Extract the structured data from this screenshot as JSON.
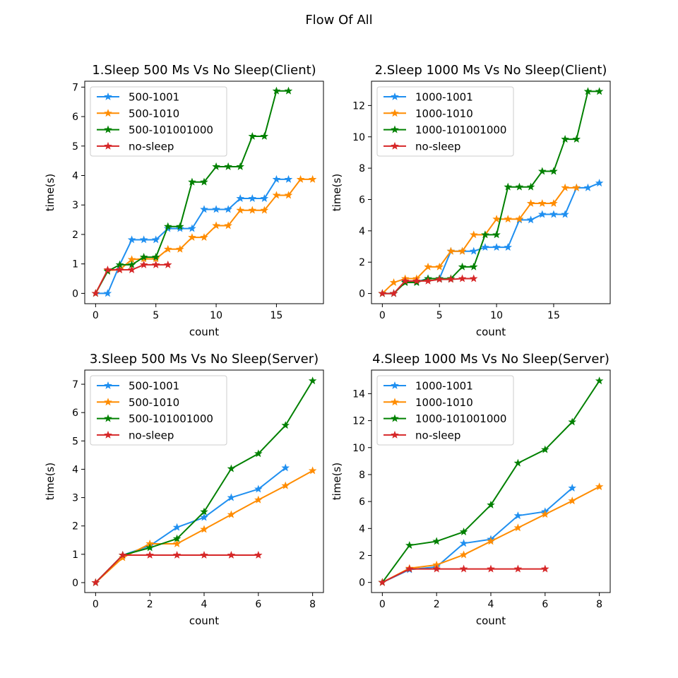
{
  "figure": {
    "title": "Flow Of All"
  },
  "chart_data": [
    {
      "type": "line",
      "title": "1.Sleep 500 Ms Vs No Sleep(Client)",
      "xlabel": "count",
      "ylabel": "time(s)",
      "xlim": [
        -0.9,
        18.9
      ],
      "ylim": [
        -0.35,
        7.2
      ],
      "xticks": [
        0,
        5,
        10,
        15
      ],
      "yticks": [
        0,
        1,
        2,
        3,
        4,
        5,
        6,
        7
      ],
      "legend": "upper-left",
      "series": [
        {
          "name": "500-1001",
          "color": "#1f8ff0",
          "x": [
            0,
            1,
            2,
            3,
            4,
            5,
            6,
            7,
            8,
            9,
            10,
            11,
            12,
            13,
            14,
            15,
            16
          ],
          "y": [
            0,
            0,
            0.97,
            1.82,
            1.82,
            1.82,
            2.2,
            2.2,
            2.2,
            2.85,
            2.85,
            2.85,
            3.22,
            3.22,
            3.22,
            3.87,
            3.87
          ]
        },
        {
          "name": "500-1010",
          "color": "#ff8c00",
          "x": [
            0,
            1,
            2,
            3,
            4,
            5,
            6,
            7,
            8,
            9,
            10,
            11,
            12,
            13,
            14,
            15,
            16,
            17,
            18
          ],
          "y": [
            0,
            0.78,
            0.8,
            1.15,
            1.17,
            1.17,
            1.5,
            1.5,
            1.9,
            1.9,
            2.3,
            2.3,
            2.82,
            2.82,
            2.82,
            3.33,
            3.33,
            3.87,
            3.87
          ]
        },
        {
          "name": "500-101001000",
          "color": "#008000",
          "x": [
            0,
            1,
            2,
            3,
            4,
            5,
            6,
            7,
            8,
            9,
            10,
            11,
            12,
            13,
            14,
            15,
            16
          ],
          "y": [
            0,
            0.75,
            0.97,
            0.97,
            1.23,
            1.23,
            2.27,
            2.27,
            3.78,
            3.78,
            4.3,
            4.3,
            4.3,
            5.33,
            5.33,
            6.87,
            6.87
          ]
        },
        {
          "name": "no-sleep",
          "color": "#d62728",
          "x": [
            0,
            1,
            2,
            3,
            4,
            5,
            6
          ],
          "y": [
            0,
            0.8,
            0.8,
            0.8,
            0.97,
            0.97,
            0.97
          ]
        }
      ]
    },
    {
      "type": "line",
      "title": "2.Sleep 1000 Ms Vs No Sleep(Client)",
      "xlabel": "count",
      "ylabel": "time(s)",
      "xlim": [
        -0.95,
        19.95
      ],
      "ylim": [
        -0.65,
        13.55
      ],
      "xticks": [
        0,
        5,
        10,
        15
      ],
      "yticks": [
        0,
        2,
        4,
        6,
        8,
        10,
        12
      ],
      "legend": "upper-left",
      "series": [
        {
          "name": "1000-1001",
          "color": "#1f8ff0",
          "x": [
            0,
            1,
            2,
            3,
            4,
            5,
            6,
            7,
            8,
            9,
            10,
            11,
            12,
            13,
            14,
            15,
            16,
            17,
            18,
            19
          ],
          "y": [
            0,
            0,
            0.75,
            0.75,
            0.95,
            0.95,
            2.7,
            2.7,
            2.7,
            2.95,
            2.95,
            2.95,
            4.7,
            4.7,
            5.05,
            5.05,
            5.05,
            6.75,
            6.75,
            7.05
          ]
        },
        {
          "name": "1000-1010",
          "color": "#ff8c00",
          "x": [
            0,
            1,
            2,
            3,
            4,
            5,
            6,
            7,
            8,
            9,
            10,
            11,
            12,
            13,
            14,
            15,
            16,
            17
          ],
          "y": [
            0,
            0.7,
            0.95,
            0.95,
            1.7,
            1.7,
            2.7,
            2.7,
            3.75,
            3.75,
            4.75,
            4.75,
            4.75,
            5.75,
            5.75,
            5.75,
            6.75,
            6.75
          ]
        },
        {
          "name": "1000-101001000",
          "color": "#008000",
          "x": [
            0,
            1,
            2,
            3,
            4,
            5,
            6,
            7,
            8,
            9,
            10,
            11,
            12,
            13,
            14,
            15,
            16,
            17,
            18,
            19
          ],
          "y": [
            0,
            0,
            0.7,
            0.7,
            0.95,
            0.95,
            0.95,
            1.7,
            1.7,
            3.75,
            3.75,
            6.8,
            6.8,
            6.8,
            7.8,
            7.8,
            9.85,
            9.85,
            12.9,
            12.9
          ]
        },
        {
          "name": "no-sleep",
          "color": "#d62728",
          "x": [
            0,
            1,
            2,
            3,
            4,
            5,
            6,
            7,
            8
          ],
          "y": [
            0,
            0,
            0.8,
            0.8,
            0.8,
            0.9,
            0.9,
            0.95,
            0.95
          ]
        }
      ]
    },
    {
      "type": "line",
      "title": "3.Sleep 500 Ms Vs No Sleep(Server)",
      "xlabel": "count",
      "ylabel": "time(s)",
      "xlim": [
        -0.4,
        8.4
      ],
      "ylim": [
        -0.35,
        7.5
      ],
      "xticks": [
        0,
        2,
        4,
        6,
        8
      ],
      "yticks": [
        0,
        1,
        2,
        3,
        4,
        5,
        6,
        7
      ],
      "legend": "upper-left",
      "series": [
        {
          "name": "500-1001",
          "color": "#1f8ff0",
          "x": [
            0,
            1,
            2,
            3,
            4,
            5,
            6,
            7
          ],
          "y": [
            0,
            0.97,
            1.3,
            1.95,
            2.3,
            3.0,
            3.3,
            4.05
          ]
        },
        {
          "name": "500-1010",
          "color": "#ff8c00",
          "x": [
            0,
            1,
            2,
            3,
            4,
            5,
            6,
            7,
            8
          ],
          "y": [
            0,
            0.88,
            1.37,
            1.37,
            1.88,
            2.4,
            2.92,
            3.42,
            3.95
          ]
        },
        {
          "name": "500-101001000",
          "color": "#008000",
          "x": [
            0,
            1,
            2,
            3,
            4,
            5,
            6,
            7,
            8
          ],
          "y": [
            0,
            0.97,
            1.23,
            1.55,
            2.5,
            4.02,
            4.55,
            5.55,
            7.12
          ]
        },
        {
          "name": "no-sleep",
          "color": "#d62728",
          "x": [
            0,
            1,
            2,
            3,
            4,
            5,
            6
          ],
          "y": [
            0,
            0.97,
            0.97,
            0.97,
            0.97,
            0.97,
            0.97
          ]
        }
      ]
    },
    {
      "type": "line",
      "title": "4.Sleep 1000 Ms Vs No Sleep(Server)",
      "xlabel": "count",
      "ylabel": "time(s)",
      "xlim": [
        -0.4,
        8.4
      ],
      "ylim": [
        -0.75,
        15.75
      ],
      "xticks": [
        0,
        2,
        4,
        6,
        8
      ],
      "yticks": [
        0,
        2,
        4,
        6,
        8,
        10,
        12,
        14
      ],
      "legend": "upper-left",
      "series": [
        {
          "name": "1000-1001",
          "color": "#1f8ff0",
          "x": [
            0,
            1,
            2,
            3,
            4,
            5,
            6,
            7
          ],
          "y": [
            0,
            0.95,
            1.15,
            2.9,
            3.2,
            4.95,
            5.25,
            7.0
          ]
        },
        {
          "name": "1000-1010",
          "color": "#ff8c00",
          "x": [
            0,
            1,
            2,
            3,
            4,
            5,
            6,
            7,
            8
          ],
          "y": [
            0,
            1.05,
            1.3,
            2.05,
            3.05,
            4.05,
            5.05,
            6.05,
            7.1
          ]
        },
        {
          "name": "1000-101001000",
          "color": "#008000",
          "x": [
            0,
            1,
            2,
            3,
            4,
            5,
            6,
            7,
            8
          ],
          "y": [
            0,
            2.75,
            3.05,
            3.75,
            5.75,
            8.85,
            9.85,
            11.9,
            14.95
          ]
        },
        {
          "name": "no-sleep",
          "color": "#d62728",
          "x": [
            0,
            1,
            2,
            3,
            4,
            5,
            6
          ],
          "y": [
            0,
            1.0,
            1.0,
            1.0,
            1.0,
            1.0,
            1.0
          ]
        }
      ]
    }
  ]
}
